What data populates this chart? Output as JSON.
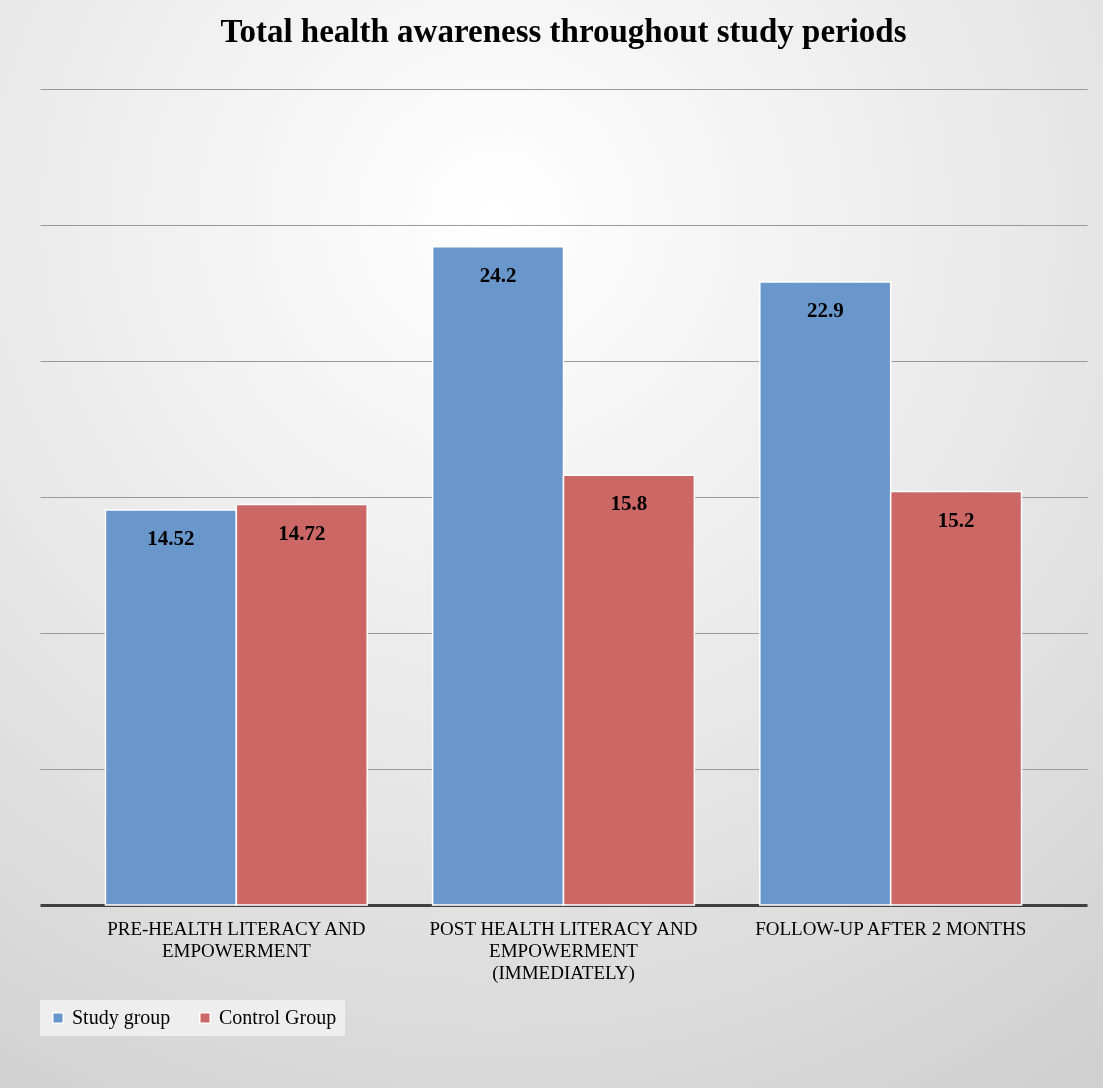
{
  "chart_data": {
    "type": "bar",
    "title": "Total health awareness throughout study periods",
    "categories": [
      "PRE-HEALTH LITERACY AND EMPOWERMENT",
      "POST HEALTH LITERACY AND EMPOWERMENT (IMMEDIATELY)",
      "FOLLOW-UP AFTER 2 MONTHS"
    ],
    "series": [
      {
        "name": "Study group",
        "color": "#6a97cb",
        "values": [
          14.52,
          24.2,
          22.9
        ]
      },
      {
        "name": "Control Group",
        "color": "#cb6866",
        "values": [
          14.72,
          15.8,
          15.2
        ]
      }
    ],
    "ylim": [
      0,
      30
    ],
    "yticks": [
      {
        "value": 5,
        "label": null
      },
      {
        "value": 10,
        "label": null
      },
      {
        "value": 15,
        "label": null
      },
      {
        "value": 20,
        "label": null
      },
      {
        "value": 25,
        "label": null
      },
      {
        "value": 30,
        "label": null
      }
    ],
    "grid": "y",
    "tick_labels": "x",
    "legend": "bottom",
    "data_labels": true
  }
}
